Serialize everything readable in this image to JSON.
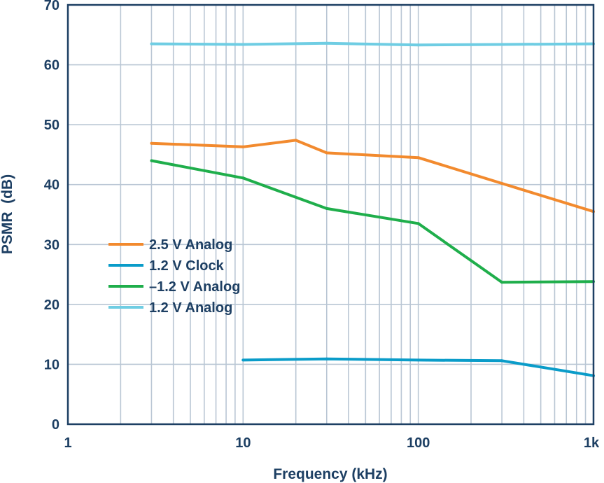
{
  "chart_data": {
    "type": "line",
    "title": "",
    "xlabel": "Frequency (kHz)",
    "ylabel": "PSMR  (dB)",
    "x_scale": "log",
    "xlim": [
      1,
      1000
    ],
    "ylim": [
      0,
      70
    ],
    "x_ticks": [
      {
        "value": 1,
        "label": "1"
      },
      {
        "value": 10,
        "label": "10"
      },
      {
        "value": 100,
        "label": "100"
      },
      {
        "value": 1000,
        "label": "1k"
      }
    ],
    "y_ticks": [
      0,
      10,
      20,
      30,
      40,
      50,
      60,
      70
    ],
    "grid": true,
    "legend_position": "left-middle",
    "series": [
      {
        "name": "2.5 V Analog",
        "color": "#f28a2e",
        "points": [
          [
            3,
            46.9
          ],
          [
            10,
            46.3
          ],
          [
            20,
            47.4
          ],
          [
            30,
            45.3
          ],
          [
            100,
            44.5
          ],
          [
            300,
            40.2
          ],
          [
            1000,
            35.5
          ]
        ]
      },
      {
        "name": "1.2 V Clock",
        "color": "#0a9cc9",
        "points": [
          [
            10,
            10.7
          ],
          [
            30,
            10.9
          ],
          [
            100,
            10.7
          ],
          [
            300,
            10.6
          ],
          [
            1000,
            8.1
          ]
        ]
      },
      {
        "name": "–1.2 V Analog",
        "color": "#1fae4b",
        "points": [
          [
            3,
            44.0
          ],
          [
            10,
            41.1
          ],
          [
            30,
            36.0
          ],
          [
            100,
            33.5
          ],
          [
            300,
            23.7
          ],
          [
            1000,
            23.8
          ]
        ]
      },
      {
        "name": "1.2 V Analog",
        "color": "#6fcde3",
        "points": [
          [
            3,
            63.5
          ],
          [
            10,
            63.4
          ],
          [
            30,
            63.6
          ],
          [
            100,
            63.3
          ],
          [
            300,
            63.4
          ],
          [
            1000,
            63.5
          ]
        ]
      }
    ]
  }
}
